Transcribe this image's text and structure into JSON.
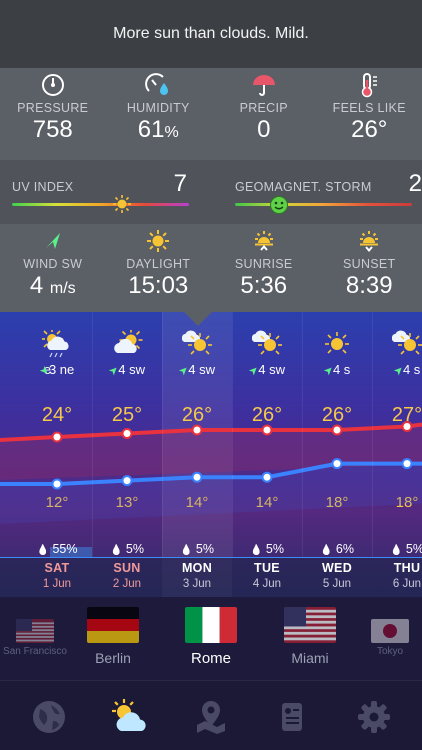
{
  "summary": "More sun than clouds. Mild.",
  "metrics_top": [
    {
      "name": "pressure",
      "label": "PRESSURE",
      "value": "758",
      "icon": "gauge-icon"
    },
    {
      "name": "humidity",
      "label": "HUMIDITY",
      "value": "61",
      "unit": "%",
      "icon": "humidity-gauge-icon"
    },
    {
      "name": "precip",
      "label": "PRECIP",
      "value": "0",
      "icon": "umbrella-icon"
    },
    {
      "name": "feels-like",
      "label": "FEELS LIKE",
      "value": "26°",
      "icon": "thermometer-icon"
    }
  ],
  "uv": {
    "label": "UV INDEX",
    "value": "7",
    "level": 0.62
  },
  "geomagnetic": {
    "label": "GEOMAGNET. STORM",
    "value": "2",
    "level": 0.25
  },
  "metrics_bottom": [
    {
      "name": "wind",
      "label": "WIND SW",
      "value": "4",
      "unit": "m/s",
      "icon": "wind-arrow-icon"
    },
    {
      "name": "daylight",
      "label": "DAYLIGHT",
      "value": "15:03",
      "icon": "sun-icon"
    },
    {
      "name": "sunrise",
      "label": "SUNRISE",
      "value": "5:36",
      "icon": "sunrise-icon"
    },
    {
      "name": "sunset",
      "label": "SUNSET",
      "value": "8:39",
      "icon": "sunset-icon"
    }
  ],
  "forecast": [
    {
      "day": "",
      "date": "",
      "wind": "e",
      "high": "",
      "low": "",
      "precip": "",
      "icon": "",
      "weekend": false
    },
    {
      "day": "SAT",
      "date": "1 Jun",
      "wind": "3 ne",
      "high": "24°",
      "low": "12°",
      "precip": "55%",
      "icon": "sun-cloud-rain-icon",
      "weekend": true
    },
    {
      "day": "SUN",
      "date": "2 Jun",
      "wind": "4 sw",
      "high": "25°",
      "low": "13°",
      "precip": "5%",
      "icon": "sun-cloud-icon",
      "weekend": true
    },
    {
      "day": "MON",
      "date": "3 Jun",
      "wind": "4 sw",
      "high": "26°",
      "low": "14°",
      "precip": "5%",
      "icon": "cloud-sun-icon",
      "weekend": false
    },
    {
      "day": "TUE",
      "date": "4 Jun",
      "wind": "4 sw",
      "high": "26°",
      "low": "14°",
      "precip": "5%",
      "icon": "cloud-sun-icon",
      "weekend": false
    },
    {
      "day": "WED",
      "date": "5 Jun",
      "wind": "4 s",
      "high": "26°",
      "low": "18°",
      "precip": "6%",
      "icon": "sun-icon",
      "weekend": false
    },
    {
      "day": "THU",
      "date": "6 Jun",
      "wind": "4 s",
      "high": "27°",
      "low": "18°",
      "precip": "5%",
      "icon": "cloud-sun-icon",
      "weekend": false
    }
  ],
  "cities": [
    {
      "name": "San Francisco",
      "flag": "us-flag-icon",
      "state": "far"
    },
    {
      "name": "Berlin",
      "flag": "germany-flag-icon",
      "state": "near"
    },
    {
      "name": "Rome",
      "flag": "italy-flag-icon",
      "state": "active"
    },
    {
      "name": "Miami",
      "flag": "us-flag-icon",
      "state": "near"
    },
    {
      "name": "Tokyo",
      "flag": "japan-flag-icon",
      "state": "far"
    }
  ],
  "tabs": [
    {
      "name": "tab-globe",
      "icon": "globe-icon",
      "active": false
    },
    {
      "name": "tab-weather",
      "icon": "sun-cloud-icon",
      "active": true
    },
    {
      "name": "tab-map",
      "icon": "map-pin-icon",
      "active": false
    },
    {
      "name": "tab-news",
      "icon": "news-icon",
      "active": false
    },
    {
      "name": "tab-settings",
      "icon": "gear-icon",
      "active": false
    }
  ],
  "colors": {
    "high_line": "#e8323f",
    "low_line": "#3a82ff",
    "temp_text": "#f6c84a",
    "accent_wind": "#5af08a"
  }
}
